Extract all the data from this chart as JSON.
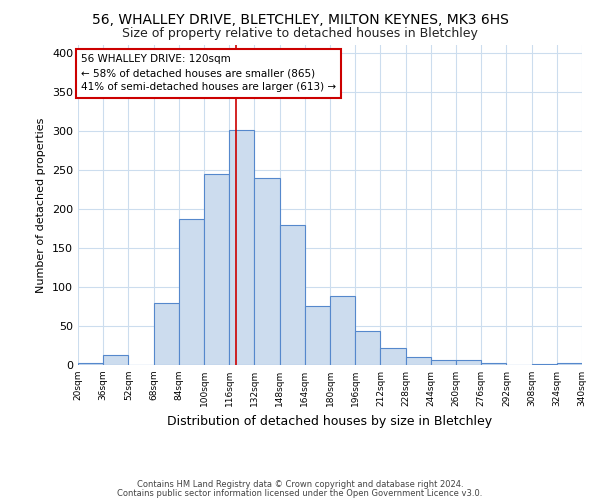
{
  "title": "56, WHALLEY DRIVE, BLETCHLEY, MILTON KEYNES, MK3 6HS",
  "subtitle": "Size of property relative to detached houses in Bletchley",
  "xlabel": "Distribution of detached houses by size in Bletchley",
  "ylabel": "Number of detached properties",
  "footnote1": "Contains HM Land Registry data © Crown copyright and database right 2024.",
  "footnote2": "Contains public sector information licensed under the Open Government Licence v3.0.",
  "bar_edges": [
    20,
    36,
    52,
    68,
    84,
    100,
    116,
    132,
    148,
    164,
    180,
    196,
    212,
    228,
    244,
    260,
    276,
    292,
    308,
    324,
    340
  ],
  "bar_heights": [
    3,
    13,
    0,
    80,
    187,
    245,
    301,
    240,
    180,
    75,
    88,
    43,
    22,
    10,
    6,
    6,
    3,
    0,
    1,
    3
  ],
  "bar_color": "#ccdcee",
  "bar_edge_color": "#5588cc",
  "property_line_x": 120,
  "property_line_color": "#cc0000",
  "annotation_line1": "56 WHALLEY DRIVE: 120sqm",
  "annotation_line2": "← 58% of detached houses are smaller (865)",
  "annotation_line3": "41% of semi-detached houses are larger (613) →",
  "annotation_box_color": "#ffffff",
  "annotation_box_edge_color": "#cc0000",
  "ylim": [
    0,
    410
  ],
  "yticks": [
    0,
    50,
    100,
    150,
    200,
    250,
    300,
    350,
    400
  ],
  "background_color": "#ffffff",
  "grid_color": "#ccddee",
  "title_fontsize": 10,
  "subtitle_fontsize": 9
}
